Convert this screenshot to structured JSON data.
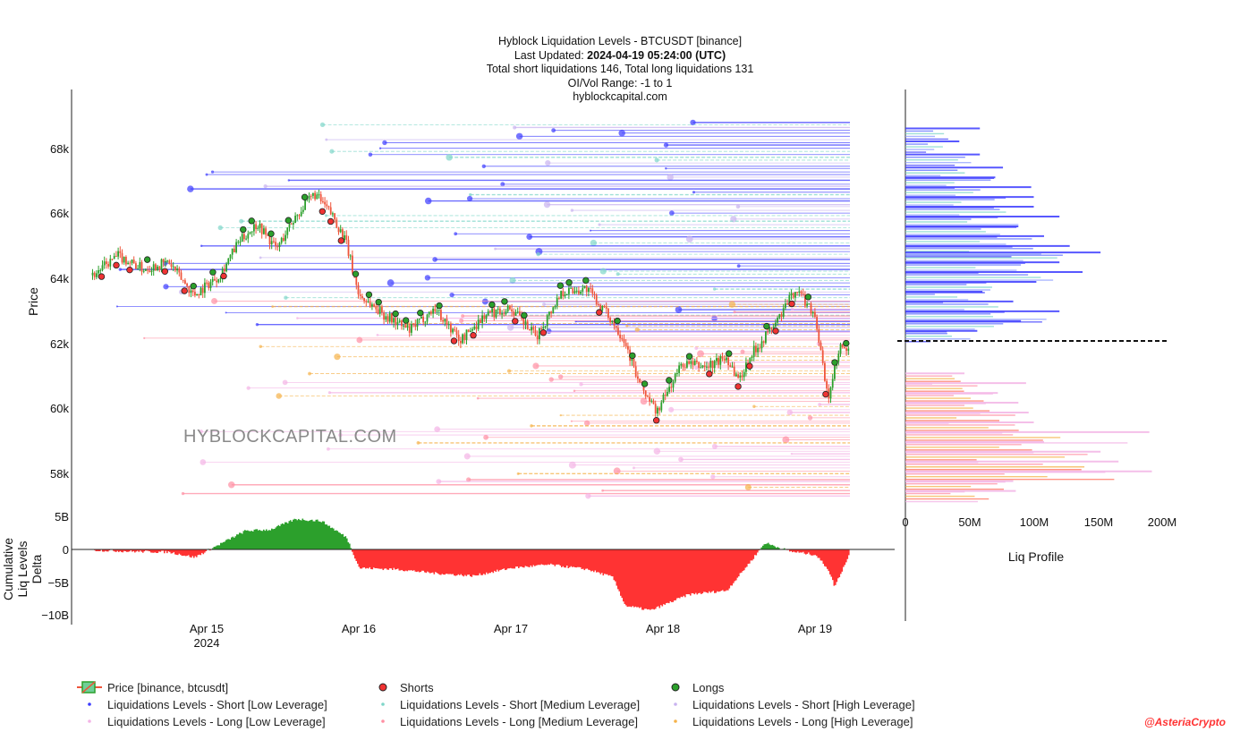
{
  "title_block": {
    "line1": "Hyblock Liquidation Levels - BTCUSDT [binance]",
    "line2_label": "Last Updated: ",
    "line2_value": "2024-04-19 05:24:00 (UTC)",
    "line3": "Total short liquidations 146, Total long liquidations 131",
    "line4": "OI/Vol Range: -1 to 1",
    "line5": "hyblockcapital.com"
  },
  "watermark": "HYBLOCKCAPITAL.COM",
  "credit": "@AsteriaCrypto",
  "colors": {
    "up": "#2ca02c",
    "down": "#ef553b",
    "short_low": "#3b3bff",
    "short_med": "#7fd6c9",
    "short_high": "#c9b3f0",
    "long_low": "#f3b4e6",
    "long_med": "#ff8fa3",
    "long_high": "#f5b24a",
    "delta_pos": "#2ca02c",
    "delta_neg": "#ff3333"
  },
  "chart_data": [
    {
      "type": "line",
      "name": "price-panel",
      "title": "Hyblock Liquidation Levels - BTCUSDT [binance]",
      "ylabel": "Price",
      "x_ticks": [
        "Apr 15",
        "Apr 16",
        "Apr 17",
        "Apr 18",
        "Apr 19"
      ],
      "x_year_label": "2024",
      "y_ticks": [
        "58k",
        "60k",
        "62k",
        "64k",
        "66k",
        "68k"
      ],
      "ylim": [
        57200,
        69400
      ],
      "series": [
        {
          "name": "Price [binance, btcusdt]",
          "x": [
            "Apr 14 06:00",
            "Apr 14 10:00",
            "Apr 14 14:00",
            "Apr 14 18:00",
            "Apr 14 22:00",
            "Apr 15 02:00",
            "Apr 15 05:00",
            "Apr 15 08:00",
            "Apr 15 11:00",
            "Apr 15 14:00",
            "Apr 15 17:00",
            "Apr 15 20:00",
            "Apr 15 22:00",
            "Apr 16 00:00",
            "Apr 16 04:00",
            "Apr 16 08:00",
            "Apr 16 12:00",
            "Apr 16 16:00",
            "Apr 16 20:00",
            "Apr 17 00:00",
            "Apr 17 04:00",
            "Apr 17 08:00",
            "Apr 17 12:00",
            "Apr 17 16:00",
            "Apr 17 18:00",
            "Apr 17 20:00",
            "Apr 17 23:00",
            "Apr 18 03:00",
            "Apr 18 07:00",
            "Apr 18 10:00",
            "Apr 18 12:00",
            "Apr 18 14:00",
            "Apr 18 18:00",
            "Apr 18 21:00",
            "Apr 19 00:00",
            "Apr 19 02:00",
            "Apr 19 04:00",
            "Apr 19 05:24"
          ],
          "values": [
            64200,
            64800,
            64400,
            64600,
            63600,
            64200,
            65200,
            65800,
            65000,
            66000,
            66700,
            66000,
            65200,
            63600,
            63000,
            62500,
            63200,
            62200,
            63000,
            63200,
            62300,
            63700,
            63800,
            62800,
            62200,
            61000,
            60000,
            61500,
            61400,
            61700,
            61000,
            61800,
            62800,
            63800,
            63000,
            60400,
            62000,
            61800
          ]
        }
      ]
    },
    {
      "type": "area",
      "name": "delta-panel",
      "ylabel": "Cumulative Liq Levels Delta",
      "y_ticks": [
        "−10B",
        "−5B",
        "0",
        "5B"
      ],
      "ylim": [
        -10,
        5
      ],
      "series": [
        {
          "name": "Cumulative Liq Levels Delta (B)",
          "x": [
            "Apr 14 06:00",
            "Apr 14 12:00",
            "Apr 14 18:00",
            "Apr 14 22:00",
            "Apr 15 02:00",
            "Apr 15 06:00",
            "Apr 15 10:00",
            "Apr 15 14:00",
            "Apr 15 18:00",
            "Apr 15 22:00",
            "Apr 16 00:00",
            "Apr 16 06:00",
            "Apr 16 12:00",
            "Apr 16 18:00",
            "Apr 17 00:00",
            "Apr 17 06:00",
            "Apr 17 12:00",
            "Apr 17 16:00",
            "Apr 17 18:00",
            "Apr 17 22:00",
            "Apr 18 04:00",
            "Apr 18 10:00",
            "Apr 18 14:00",
            "Apr 18 16:00",
            "Apr 18 20:00",
            "Apr 19 00:00",
            "Apr 19 02:00",
            "Apr 19 03:00",
            "Apr 19 05:24"
          ],
          "values": [
            -0.1,
            -0.3,
            -0.4,
            -1.2,
            0.8,
            2.8,
            3.0,
            4.6,
            4.3,
            1.8,
            -2.8,
            -3.0,
            -3.6,
            -4.0,
            -2.8,
            -2.3,
            -3.0,
            -4.2,
            -8.5,
            -9.2,
            -6.8,
            -6.2,
            -1.5,
            1.0,
            -0.3,
            -0.8,
            -3.0,
            -5.6,
            -0.6
          ]
        }
      ]
    },
    {
      "type": "bar",
      "name": "liq-profile",
      "xlabel": "Liq Profile",
      "x_ticks": [
        "0",
        "50M",
        "100M",
        "150M",
        "200M"
      ],
      "xlim": [
        0,
        200
      ],
      "current_price": 61800,
      "series": [
        {
          "name": "Short liquidation clusters ($M)",
          "prices": [
            68700,
            68300,
            67900,
            67500,
            67200,
            66900,
            66600,
            66300,
            66000,
            65700,
            65400,
            65100,
            64900,
            64600,
            64300,
            64000,
            63700,
            63400,
            63100,
            62800,
            62500
          ],
          "values": [
            58,
            42,
            58,
            76,
            70,
            98,
            100,
            100,
            120,
            88,
            108,
            128,
            152,
            120,
            138,
            102,
            60,
            84,
            120,
            90,
            56
          ]
        },
        {
          "name": "Long liquidation clusters ($M)",
          "prices": [
            61200,
            60900,
            60600,
            60300,
            60000,
            59700,
            59400,
            59100,
            58800,
            58500,
            58200,
            57900,
            57600
          ],
          "values": [
            46,
            94,
            72,
            88,
            96,
            100,
            190,
            108,
            152,
            166,
            192,
            84,
            86
          ]
        }
      ]
    }
  ],
  "legend": {
    "items": [
      {
        "label": "Price [binance, btcusdt]",
        "kind": "candle"
      },
      {
        "label": "Shorts",
        "kind": "short-dot"
      },
      {
        "label": "Longs",
        "kind": "long-dot"
      },
      {
        "label": "Liquidations Levels - Short [Low Leverage]",
        "kind": "short_low"
      },
      {
        "label": "Liquidations Levels - Short [Medium Leverage]",
        "kind": "short_med"
      },
      {
        "label": "Liquidations Levels - Short [High Leverage]",
        "kind": "short_high"
      },
      {
        "label": "Liquidations Levels - Long [Low Leverage]",
        "kind": "long_low"
      },
      {
        "label": "Liquidations Levels - Long [Medium Leverage]",
        "kind": "long_med"
      },
      {
        "label": "Liquidations Levels - Long [High Leverage]",
        "kind": "long_high"
      }
    ]
  }
}
